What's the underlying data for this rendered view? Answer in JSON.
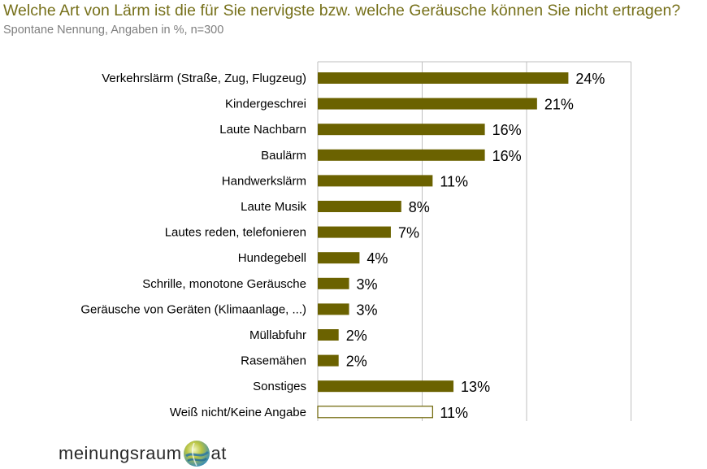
{
  "header": {
    "title": "Welche Art von Lärm ist die für Sie nervigste bzw. welche Geräusche können Sie nicht ertragen?",
    "subtitle": "Spontane Nennung, Angaben in %, n=300"
  },
  "logo": {
    "left_text": "meinungsraum",
    "right_text": "at",
    "icon": "globe-icon"
  },
  "colors": {
    "bar": "#6b6200",
    "bar_outline": "#6b6200",
    "title": "#76701a",
    "grid": "#bfbfbf"
  },
  "chart_data": {
    "type": "bar",
    "orientation": "horizontal",
    "categories": [
      "Verkehrslärm (Straße, Zug, Flugzeug)",
      "Kindergeschrei",
      "Laute Nachbarn",
      "Baulärm",
      "Handwerkslärm",
      "Laute Musik",
      "Lautes reden, telefonieren",
      "Hundegebell",
      "Schrille, monotone Geräusche",
      "Geräusche von Geräten (Klimaanlage, ...)",
      "Müllabfuhr",
      "Rasemähen",
      "Sonstiges",
      "Weiß nicht/Keine Angabe"
    ],
    "values": [
      24,
      21,
      16,
      16,
      11,
      8,
      7,
      4,
      3,
      3,
      2,
      2,
      13,
      11
    ],
    "value_labels": [
      "24%",
      "21%",
      "16%",
      "16%",
      "11%",
      "8%",
      "7%",
      "4%",
      "3%",
      "3%",
      "2%",
      "2%",
      "13%",
      "11%"
    ],
    "hollow": [
      false,
      false,
      false,
      false,
      false,
      false,
      false,
      false,
      false,
      false,
      false,
      false,
      false,
      true
    ],
    "xlim": [
      0,
      30
    ],
    "gridlines": [
      0,
      10,
      20,
      30
    ],
    "grid": true,
    "legend": "none"
  }
}
